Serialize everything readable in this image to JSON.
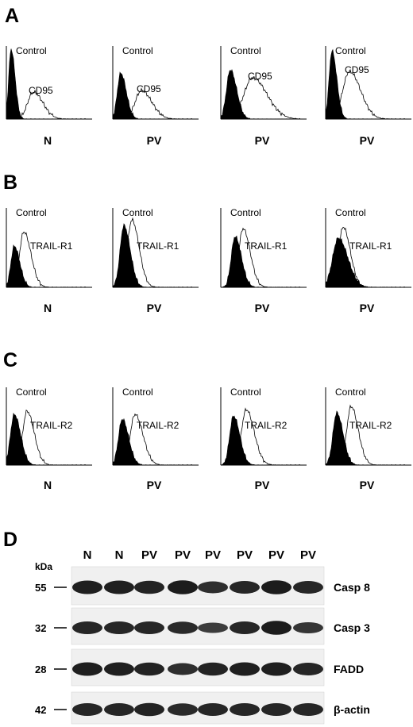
{
  "panels": {
    "A": {
      "letter": "A",
      "plots": [
        {
          "marker": "CD95",
          "control_label": "Control",
          "sample": "N"
        },
        {
          "marker": "CD95",
          "control_label": "Control",
          "sample": "PV"
        },
        {
          "marker": "CD95",
          "control_label": "Control",
          "sample": "PV"
        },
        {
          "marker": "CD95",
          "control_label": "Control",
          "sample": "PV"
        }
      ]
    },
    "B": {
      "letter": "B",
      "plots": [
        {
          "marker": "TRAIL-R1",
          "control_label": "Control",
          "sample": "N"
        },
        {
          "marker": "TRAIL-R1",
          "control_label": "Control",
          "sample": "PV"
        },
        {
          "marker": "TRAIL-R1",
          "control_label": "Control",
          "sample": "PV"
        },
        {
          "marker": "TRAIL-R1",
          "control_label": "Control",
          "sample": "PV"
        }
      ]
    },
    "C": {
      "letter": "C",
      "plots": [
        {
          "marker": "TRAIL-R2",
          "control_label": "Control",
          "sample": "N"
        },
        {
          "marker": "TRAIL-R2",
          "control_label": "Control",
          "sample": "PV"
        },
        {
          "marker": "TRAIL-R2",
          "control_label": "Control",
          "sample": "PV"
        },
        {
          "marker": "TRAIL-R2",
          "control_label": "Control",
          "sample": "PV"
        }
      ]
    },
    "D": {
      "letter": "D",
      "kda_label": "kDa",
      "lanes": [
        "N",
        "N",
        "PV",
        "PV",
        "PV",
        "PV",
        "PV",
        "PV"
      ],
      "blots": [
        {
          "kda": "55",
          "protein": "Casp 8",
          "band_intensity": [
            0.9,
            0.9,
            0.85,
            0.95,
            0.7,
            0.8,
            0.95,
            0.8
          ]
        },
        {
          "kda": "32",
          "protein": "Casp 3",
          "band_intensity": [
            0.8,
            0.8,
            0.8,
            0.75,
            0.5,
            0.8,
            0.95,
            0.6
          ]
        },
        {
          "kda": "28",
          "protein": "FADD",
          "band_intensity": [
            0.9,
            0.9,
            0.85,
            0.7,
            0.85,
            0.9,
            0.9,
            0.8
          ]
        },
        {
          "kda": "42",
          "protein": "β-actin",
          "band_intensity": [
            0.8,
            0.8,
            0.85,
            0.75,
            0.8,
            0.8,
            0.8,
            0.8
          ]
        }
      ]
    }
  }
}
